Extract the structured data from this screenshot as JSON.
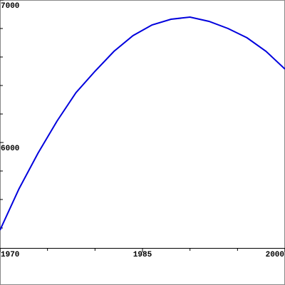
{
  "chart_data": {
    "type": "line",
    "x": [
      1970,
      1972,
      1974,
      1976,
      1978,
      1980,
      1982,
      1984,
      1986,
      1988,
      1990,
      1992,
      1994,
      1996,
      1998,
      2000
    ],
    "series": [
      {
        "color": "#0000dd",
        "values": [
          5385,
          5675,
          5925,
          6150,
          6350,
          6500,
          6640,
          6750,
          6825,
          6865,
          6880,
          6850,
          6800,
          6735,
          6640,
          6515
        ]
      }
    ],
    "xlim": [
      1970,
      2000
    ],
    "xticks": [
      1970,
      1985,
      2000
    ],
    "xminorticks": [
      1975,
      1980,
      1990,
      1995
    ],
    "ylim": [
      5260,
      7000
    ],
    "yticks": [
      6000,
      7000
    ],
    "yminorticks": [
      5400,
      5600,
      5800,
      6200,
      6400,
      6600,
      6800
    ]
  }
}
